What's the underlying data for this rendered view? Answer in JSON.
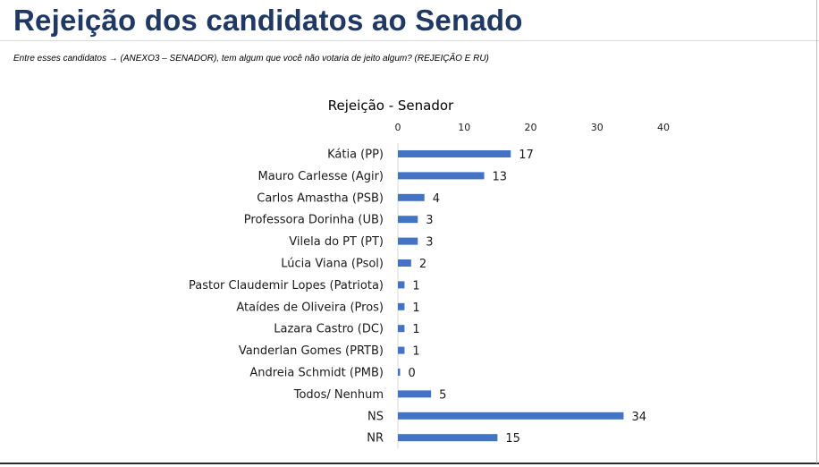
{
  "slide": {
    "title": "Rejeição dos candidatos ao Senado",
    "subtitle": "Entre esses candidatos → (ANEXO3 – SENADOR), tem algum que você não votaria de jeito algum? (REJEIÇÃO E RU)"
  },
  "chart_data": {
    "type": "bar",
    "orientation": "horizontal",
    "title": "Rejeição - Senador",
    "categories": [
      "Kátia (PP)",
      "Mauro Carlesse (Agir)",
      "Carlos Amastha (PSB)",
      "Professora Dorinha (UB)",
      "Vilela do PT (PT)",
      "Lúcia Viana (Psol)",
      "Pastor Claudemir Lopes (Patriota)",
      "Ataídes de Oliveira (Pros)",
      "Lazara Castro (DC)",
      "Vanderlan Gomes (PRTB)",
      "Andreia Schmidt (PMB)",
      "Todos/ Nenhum",
      "NS",
      "NR"
    ],
    "values": [
      17,
      13,
      4,
      3,
      3,
      2,
      1,
      1,
      1,
      1,
      0,
      5,
      34,
      15
    ],
    "xlim": [
      0,
      40
    ],
    "xticks": [
      0,
      10,
      20,
      30,
      40
    ],
    "axis_position": "top",
    "grid": false,
    "legend": "none",
    "bar_color": "#4472c4"
  }
}
